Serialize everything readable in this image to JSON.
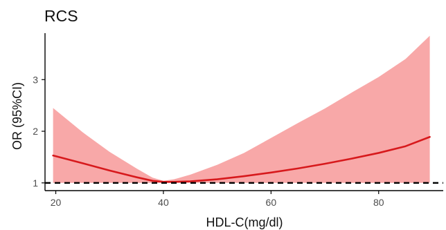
{
  "chart_data": {
    "type": "line",
    "title": "RCS",
    "xlabel": "HDL-C(mg/dl)",
    "ylabel": "OR (95%CI)",
    "xlim": [
      18,
      92
    ],
    "ylim": [
      0.85,
      3.9
    ],
    "x_ticks": [
      20,
      40,
      60,
      80
    ],
    "y_ticks": [
      1,
      2,
      3
    ],
    "grid": false,
    "reference_line": {
      "y": 1,
      "style": "dashed",
      "color": "#000000"
    },
    "colors": {
      "line": "#d7191c",
      "band": "#f8a8a8"
    },
    "series": [
      {
        "x": [
          19.5,
          25,
          30,
          35,
          38,
          40,
          42,
          45,
          50,
          55,
          60,
          65,
          70,
          75,
          80,
          85,
          89.5
        ],
        "y": [
          1.53,
          1.38,
          1.24,
          1.11,
          1.04,
          1.02,
          1.02,
          1.03,
          1.07,
          1.13,
          1.2,
          1.28,
          1.37,
          1.47,
          1.58,
          1.71,
          1.89
        ],
        "lower": [
          1.0,
          1.0,
          1.0,
          1.0,
          1.0,
          1.0,
          1.0,
          1.0,
          1.0,
          1.0,
          1.0,
          1.0,
          1.0,
          1.0,
          1.0,
          1.0,
          1.0
        ],
        "upper": [
          2.45,
          1.98,
          1.6,
          1.28,
          1.1,
          1.04,
          1.07,
          1.16,
          1.35,
          1.58,
          1.87,
          2.16,
          2.44,
          2.75,
          3.05,
          3.4,
          3.85
        ]
      }
    ]
  }
}
